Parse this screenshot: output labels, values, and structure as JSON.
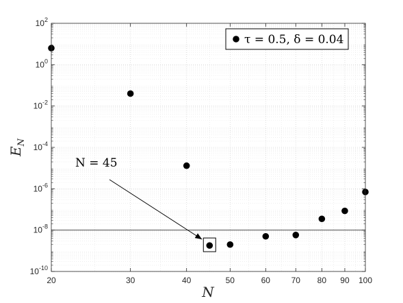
{
  "chart_data": {
    "type": "scatter",
    "xlabel": "N",
    "ylabel": "E_N",
    "xscale": "log",
    "yscale": "log",
    "xlim": [
      20,
      100
    ],
    "ylim": [
      1e-10,
      100.0
    ],
    "grid": true,
    "minor_grid": true,
    "legend_position": "top-right",
    "x_ticks": [
      20,
      30,
      40,
      50,
      60,
      70,
      80,
      90,
      100
    ],
    "x_tick_labels": [
      "20",
      "30",
      "40",
      "50",
      "60",
      "70",
      "80",
      "90",
      "100"
    ],
    "y_ticks": [
      1e-10,
      1e-08,
      1e-06,
      0.0001,
      0.01,
      1.0,
      100.0
    ],
    "y_tick_labels": [
      {
        "base": "10",
        "exp": "-10"
      },
      {
        "base": "10",
        "exp": "-8"
      },
      {
        "base": "10",
        "exp": "-6"
      },
      {
        "base": "10",
        "exp": "-4"
      },
      {
        "base": "10",
        "exp": "-2"
      },
      {
        "base": "10",
        "exp": "0"
      },
      {
        "base": "10",
        "exp": "2"
      }
    ],
    "series": [
      {
        "name": "τ = 0.5, δ = 0.04",
        "color": "#000000",
        "marker": "circle",
        "points": [
          {
            "x": 20,
            "y": 6.3
          },
          {
            "x": 30,
            "y": 0.04
          },
          {
            "x": 40,
            "y": 1.3e-05
          },
          {
            "x": 45,
            "y": 1.8e-09
          },
          {
            "x": 50,
            "y": 2e-09
          },
          {
            "x": 60,
            "y": 5e-09
          },
          {
            "x": 70,
            "y": 5.8e-09
          },
          {
            "x": 80,
            "y": 3.5e-08
          },
          {
            "x": 90,
            "y": 8.5e-08
          },
          {
            "x": 100,
            "y": 7e-07
          }
        ]
      }
    ],
    "reference_line": {
      "y": 1e-08,
      "color": "#333333"
    },
    "annotation": {
      "text": "N = 45",
      "target": {
        "x": 45,
        "y": 1.8e-09
      }
    }
  }
}
